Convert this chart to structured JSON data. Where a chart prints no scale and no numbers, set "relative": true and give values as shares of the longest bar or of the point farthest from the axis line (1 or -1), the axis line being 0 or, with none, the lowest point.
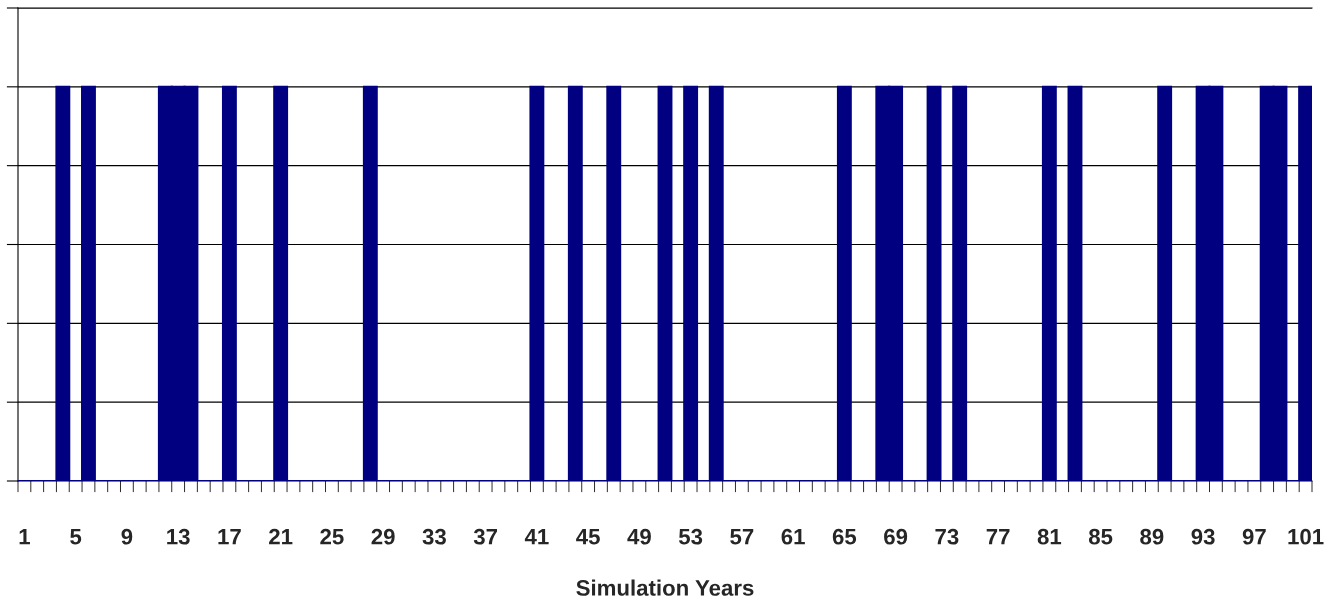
{
  "chart_data": {
    "type": "bar",
    "xlabel": "Simulation Years",
    "relative": true,
    "grid": "y",
    "tick_labels": "x",
    "categories": [
      "1",
      null,
      null,
      null,
      "5",
      null,
      null,
      null,
      "9",
      null,
      null,
      null,
      "13",
      null,
      null,
      null,
      "17",
      null,
      null,
      null,
      "21",
      null,
      null,
      null,
      "25",
      null,
      null,
      null,
      "29",
      null,
      null,
      null,
      "33",
      null,
      null,
      null,
      "37",
      null,
      null,
      null,
      "41",
      null,
      null,
      null,
      "45",
      null,
      null,
      null,
      "49",
      null,
      null,
      null,
      "53",
      null,
      null,
      null,
      "57",
      null,
      null,
      null,
      "61",
      null,
      null,
      null,
      "65",
      null,
      null,
      null,
      "69",
      null,
      null,
      null,
      "73",
      null,
      null,
      null,
      "77",
      null,
      null,
      null,
      "81",
      null,
      null,
      null,
      "85",
      null,
      null,
      null,
      "89",
      null,
      null,
      null,
      "93",
      null,
      null,
      null,
      "97",
      null,
      null,
      null,
      "101"
    ],
    "series": [
      {
        "color": "#000080",
        "values": [
          0,
          0,
          0,
          1,
          0,
          1,
          0,
          0,
          0,
          0,
          0,
          1,
          1,
          1,
          0,
          0,
          1,
          0,
          0,
          0,
          1,
          0,
          0,
          0,
          0,
          0,
          0,
          1,
          0,
          0,
          0,
          0,
          0,
          0,
          0,
          0,
          0,
          0,
          0,
          0,
          1,
          0,
          0,
          1,
          0,
          0,
          1,
          0,
          0,
          0,
          1,
          0,
          1,
          0,
          1,
          0,
          0,
          0,
          0,
          0,
          0,
          0,
          0,
          0,
          1,
          0,
          0,
          1,
          1,
          0,
          0,
          1,
          0,
          1,
          0,
          0,
          0,
          0,
          0,
          0,
          1,
          0,
          1,
          0,
          0,
          0,
          0,
          0,
          0,
          1,
          0,
          0,
          1,
          1,
          0,
          0,
          0,
          1,
          1,
          0,
          1
        ]
      }
    ]
  }
}
